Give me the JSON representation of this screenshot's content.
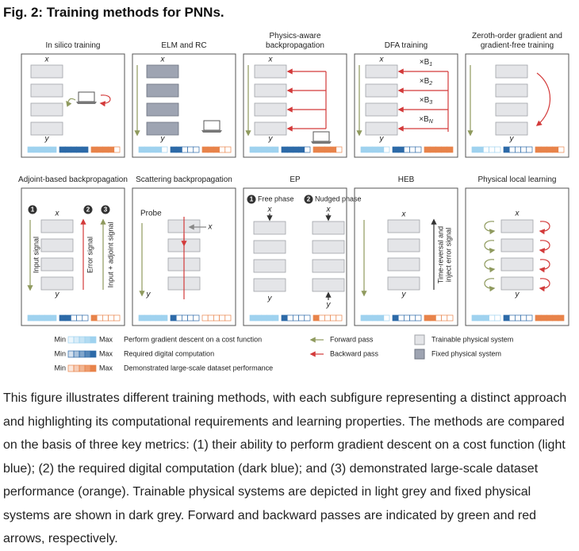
{
  "title": "Fig. 2: Training methods for PNNs.",
  "panels": [
    {
      "title": "In silico training",
      "labels": [
        "x",
        "y"
      ],
      "meters": [
        5,
        5,
        4
      ]
    },
    {
      "title": "ELM and RC",
      "labels": [
        "x",
        "y"
      ],
      "meters": [
        4,
        2,
        3
      ]
    },
    {
      "title": "Physics-aware backpropagation",
      "labels": [
        "x",
        "y"
      ],
      "meters": [
        5,
        4,
        4
      ]
    },
    {
      "title": "DFA training",
      "labels": [
        "x",
        "y"
      ],
      "multipliers": [
        {
          "text": "×B",
          "sub": "1"
        },
        {
          "text": "×B",
          "sub": "2"
        },
        {
          "text": "×B",
          "sub": "3"
        },
        {
          "text": "×B",
          "sub": "N"
        }
      ],
      "meters": [
        4,
        2,
        5
      ]
    },
    {
      "title": "Zeroth-order gradient and gradient-free training",
      "labels": [
        "y"
      ],
      "meters": [
        2,
        1,
        4
      ]
    },
    {
      "title": "Adjoint-based backpropagation",
      "labels": [
        "1",
        "2",
        "3",
        "x",
        "y",
        "Input signal",
        "Error signal",
        "Input + adjoint signal"
      ],
      "meters": [
        5,
        2,
        1
      ]
    },
    {
      "title": "Scattering backpropagation",
      "labels": [
        "Probe",
        "x",
        "y"
      ],
      "meters": [
        5,
        1,
        0
      ]
    },
    {
      "title": "EP",
      "labels": [
        "1",
        "Free phase",
        "2",
        "Nudged phase",
        "x",
        "x",
        "y",
        "y"
      ],
      "meters": [
        5,
        1,
        1
      ]
    },
    {
      "title": "HEB",
      "labels": [
        "x",
        "y",
        "Time-reversal and",
        "inject error signal"
      ],
      "meters": [
        4,
        1,
        2
      ]
    },
    {
      "title": "Physical local learning",
      "labels": [
        "x",
        "y"
      ],
      "meters": [
        3,
        1,
        5
      ]
    }
  ],
  "legend": {
    "meters": [
      {
        "min": "Min",
        "max": "Max",
        "text": "Perform gradient descent on a cost function"
      },
      {
        "min": "Min",
        "max": "Max",
        "text": "Required digital computation"
      },
      {
        "min": "Min",
        "max": "Max",
        "text": "Demonstrated large-scale dataset performance"
      }
    ],
    "arrows": [
      "Forward pass",
      "Backward pass"
    ],
    "systems": [
      "Trainable physical system",
      "Fixed physical system"
    ]
  },
  "caption": "This figure illustrates different training methods, with each subfigure representing a distinct approach and highlighting its computational requirements and learning properties. The methods are compared on the basis of three key metrics: (1) their ability to perform gradient descent on a cost function (light blue); (2) the required digital computation (dark blue); and (3) demonstrated large-scale dataset performance (orange). Trainable physical systems are depicted in light grey and fixed physical systems are shown in dark grey. Forward and backward passes are indicated by green and red arrows, respectively."
}
